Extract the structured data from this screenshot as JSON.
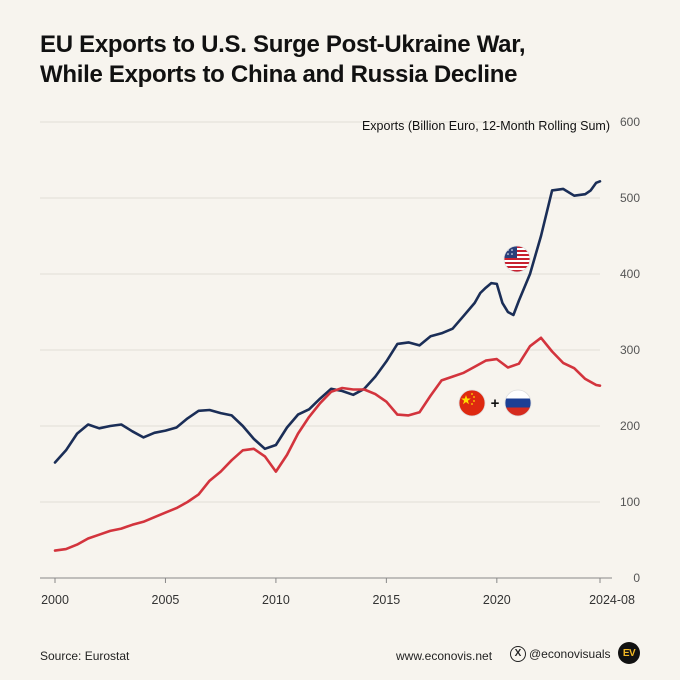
{
  "title_line1": "EU Exports to U.S. Surge Post-Ukraine War,",
  "title_line2": "While Exports to China and Russia Decline",
  "chart_data": {
    "type": "line",
    "ylabel": "Exports (Billion Euro, 12-Month Rolling Sum)",
    "ylim": [
      0,
      600
    ],
    "xlim": [
      2000.0,
      2024.67
    ],
    "y_ticks": [
      0,
      100,
      200,
      300,
      400,
      500,
      600
    ],
    "x_ticks": [
      "2000",
      "2005",
      "2010",
      "2015",
      "2020",
      "2024-08"
    ],
    "grid": true,
    "colors": {
      "us": "#1b2e57",
      "china_russia": "#d3343d"
    },
    "series": [
      {
        "key": "us",
        "icon": "us-flag-icon",
        "x": [
          2000.0,
          2000.5,
          2001.0,
          2001.5,
          2002.0,
          2002.5,
          2003.0,
          2003.5,
          2004.0,
          2004.5,
          2005.0,
          2005.5,
          2006.0,
          2006.5,
          2007.0,
          2007.5,
          2008.0,
          2008.5,
          2009.0,
          2009.5,
          2010.0,
          2010.5,
          2011.0,
          2011.5,
          2012.0,
          2012.5,
          2013.0,
          2013.5,
          2014.0,
          2014.5,
          2015.0,
          2015.5,
          2016.0,
          2016.5,
          2017.0,
          2017.5,
          2018.0,
          2018.5,
          2019.0,
          2019.25,
          2019.5,
          2019.75,
          2020.0,
          2020.25,
          2020.5,
          2020.75,
          2021.0,
          2021.5,
          2022.0,
          2022.5,
          2023.0,
          2023.5,
          2024.0,
          2024.25,
          2024.5,
          2024.67
        ],
        "y": [
          152,
          168,
          190,
          202,
          197,
          200,
          202,
          193,
          185,
          191,
          194,
          198,
          210,
          220,
          221,
          217,
          214,
          200,
          183,
          170,
          175,
          198,
          215,
          222,
          236,
          249,
          246,
          241,
          249,
          265,
          285,
          308,
          310,
          306,
          318,
          322,
          328,
          345,
          362,
          375,
          382,
          388,
          387,
          362,
          350,
          346,
          365,
          400,
          450,
          510,
          512,
          503,
          505,
          510,
          520,
          522
        ]
      },
      {
        "key": "china_russia",
        "icons": [
          "china-flag-icon",
          "russia-flag-icon"
        ],
        "x": [
          2000.0,
          2000.5,
          2001.0,
          2001.5,
          2002.0,
          2002.5,
          2003.0,
          2003.5,
          2004.0,
          2004.5,
          2005.0,
          2005.5,
          2006.0,
          2006.5,
          2007.0,
          2007.5,
          2008.0,
          2008.5,
          2009.0,
          2009.5,
          2010.0,
          2010.5,
          2011.0,
          2011.5,
          2012.0,
          2012.5,
          2013.0,
          2013.5,
          2014.0,
          2014.5,
          2015.0,
          2015.5,
          2016.0,
          2016.5,
          2017.0,
          2017.5,
          2018.0,
          2018.5,
          2019.0,
          2019.5,
          2020.0,
          2020.5,
          2021.0,
          2021.5,
          2022.0,
          2022.5,
          2023.0,
          2023.5,
          2024.0,
          2024.5,
          2024.67
        ],
        "y": [
          36,
          38,
          44,
          52,
          57,
          62,
          65,
          70,
          74,
          80,
          86,
          92,
          100,
          110,
          128,
          140,
          155,
          168,
          170,
          160,
          140,
          162,
          190,
          212,
          230,
          245,
          250,
          248,
          248,
          242,
          232,
          215,
          214,
          218,
          240,
          260,
          265,
          270,
          278,
          286,
          288,
          277,
          282,
          305,
          316,
          298,
          283,
          276,
          262,
          254,
          253
        ]
      }
    ]
  },
  "footer": {
    "source": "Source: Eurostat",
    "website": "www.econovis.net",
    "handle": "@econovisuals",
    "x_icon_char": "X",
    "logo_text": "EV"
  }
}
